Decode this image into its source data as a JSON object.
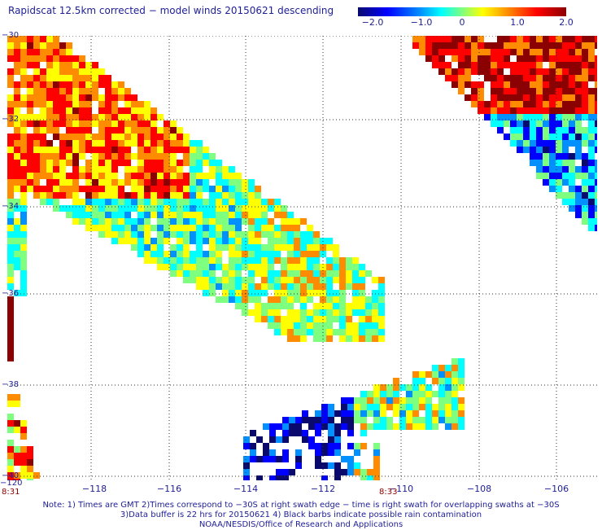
{
  "title": "Rapidscat 12.5km corrected − model winds 20150621 descending",
  "colorbar": {
    "ticks": [
      "−2.0",
      "−1.0",
      "0",
      "1.0",
      "2.0"
    ],
    "colors": [
      "#0a0a6e",
      "#0000ff",
      "#0090ff",
      "#00ffff",
      "#7fff7f",
      "#ffff00",
      "#ff8c00",
      "#ff0000",
      "#8b0000"
    ]
  },
  "axes": {
    "lat_labels": [
      "−30",
      "−32",
      "−34",
      "−36",
      "−38",
      "−40"
    ],
    "lon_labels": [
      "−118",
      "−116",
      "−114",
      "−112",
      "−110",
      "−108",
      "−106"
    ],
    "lon_first": "−120"
  },
  "time_labels": [
    "8:31",
    "8:33"
  ],
  "notes": [
    "Note: 1) Times are GMT 2)Times correspond to −30S at right swath edge − time is right swath for overlapping swaths at −30S",
    "3)Data buffer is 22 hrs for 20150621 4) Black barbs indicate possible rain contamination",
    "NOAA/NESDIS/Office of Research and Applications"
  ]
}
